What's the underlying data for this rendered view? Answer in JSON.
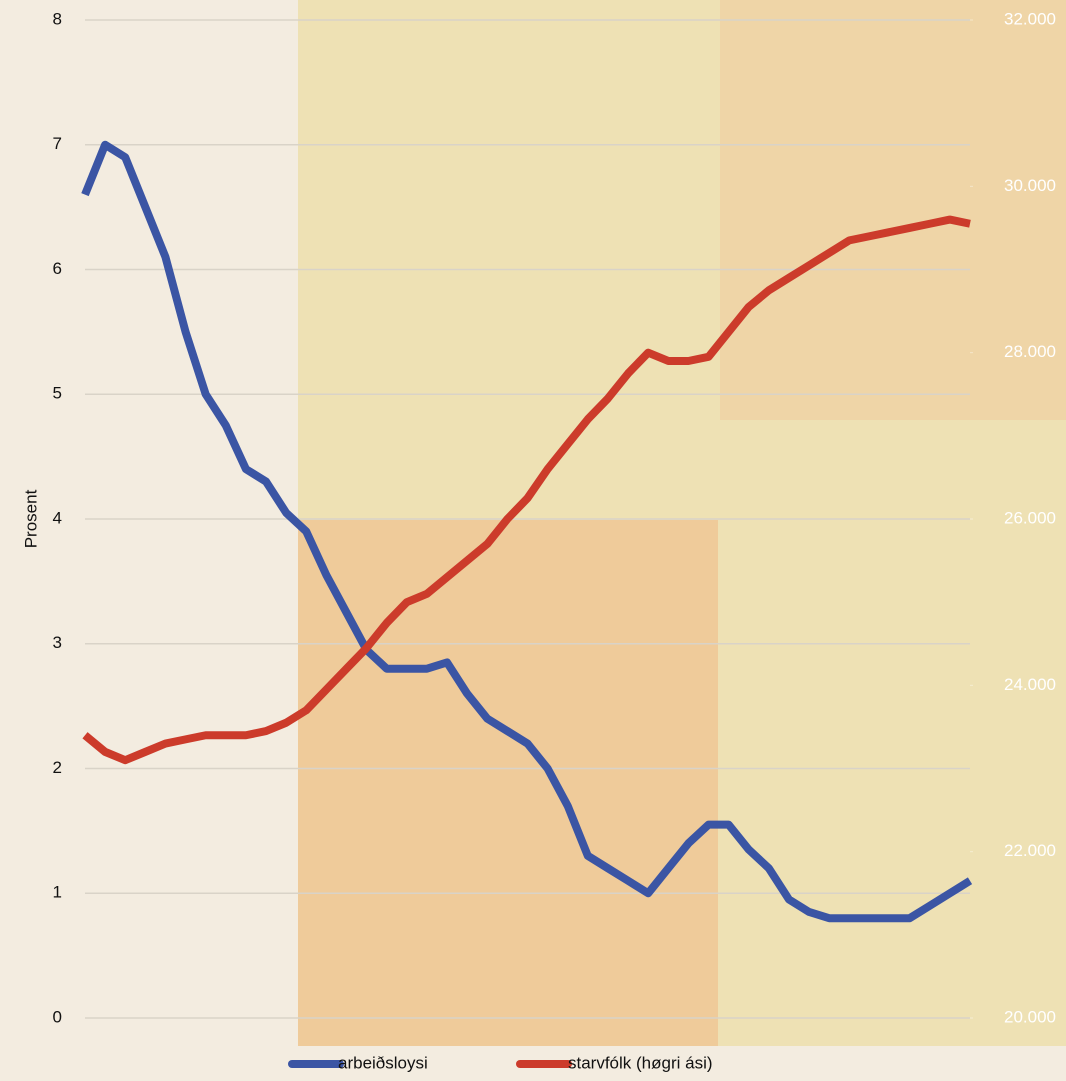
{
  "chart_data": {
    "type": "line",
    "ylabel": "Prosent",
    "categories": [
      null,
      null,
      null,
      null,
      null,
      null,
      null,
      null,
      null,
      null,
      null,
      null,
      null,
      null,
      null,
      null,
      null,
      null,
      null,
      null,
      null,
      null,
      null,
      null,
      null,
      null,
      null,
      null,
      null,
      null,
      null,
      null,
      null,
      null,
      null,
      null,
      null,
      null,
      null,
      null,
      null,
      null,
      null,
      null,
      null
    ],
    "ylim": [
      0,
      8
    ],
    "yticks": [
      0,
      1,
      2,
      3,
      4,
      5,
      6,
      7,
      8
    ],
    "y2lim": [
      20000,
      32000
    ],
    "y2ticks": [
      {
        "value": 20000,
        "label": "20.000"
      },
      {
        "value": 22000,
        "label": "22.000"
      },
      {
        "value": 24000,
        "label": "24.000"
      },
      {
        "value": 26000,
        "label": "26.000"
      },
      {
        "value": 28000,
        "label": "28.000"
      },
      {
        "value": 30000,
        "label": "30.000"
      },
      {
        "value": 32000,
        "label": "32.000"
      }
    ],
    "grid": true,
    "legend": "bottom",
    "series": [
      {
        "name": "arbeiðsloysi",
        "color": "#3b55a4",
        "values": [
          6.6,
          7.0,
          6.9,
          6.5,
          6.1,
          5.5,
          5.0,
          4.75,
          4.4,
          4.3,
          4.05,
          3.9,
          3.55,
          3.25,
          2.95,
          2.8,
          2.8,
          2.8,
          2.85,
          2.6,
          2.4,
          2.3,
          2.2,
          2.0,
          1.7,
          1.3,
          1.2,
          1.1,
          1.0,
          1.2,
          1.4,
          1.55,
          1.55,
          1.35,
          1.2,
          0.95,
          0.85,
          0.8,
          0.8,
          0.8,
          0.8,
          0.8,
          0.9,
          1.0,
          1.1
        ]
      },
      {
        "name": "starvfólk (høgri ási)",
        "color": "#cc3b2b",
        "axis": "y2",
        "values": [
          23400,
          23200,
          23100,
          23200,
          23300,
          23350,
          23400,
          23400,
          23400,
          23450,
          23550,
          23700,
          23950,
          24200,
          24450,
          24750,
          25000,
          25100,
          25300,
          25500,
          25700,
          26000,
          26250,
          26600,
          26900,
          27200,
          27450,
          27750,
          28000,
          27900,
          27900,
          27950,
          28250,
          28550,
          28750,
          28900,
          29050,
          29200,
          29350,
          29400,
          29450,
          29500,
          29550,
          29600,
          29550
        ]
      }
    ]
  }
}
